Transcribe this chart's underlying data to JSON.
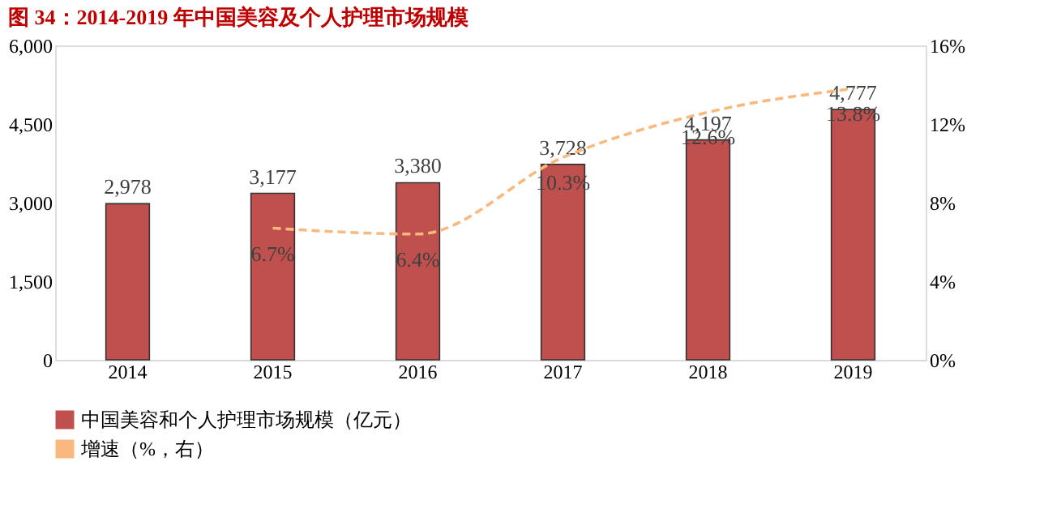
{
  "chart_data": {
    "type": "bar",
    "title": "图 34：2014-2019 年中国美容及个人护理市场规模",
    "categories": [
      "2014",
      "2015",
      "2016",
      "2017",
      "2018",
      "2019"
    ],
    "series": [
      {
        "name": "中国美容和个人护理市场规模（亿元）",
        "color": "#c0504d",
        "values": [
          2978,
          3177,
          3380,
          3728,
          4197,
          4777
        ],
        "value_labels": [
          "2,978",
          "3,177",
          "3,380",
          "3,728",
          "4,197",
          "4,777"
        ]
      },
      {
        "name": "增速（%，右）",
        "type": "line",
        "axis": "y2",
        "color": "#f9b97e",
        "line_style": "dashed",
        "values": [
          null,
          6.7,
          6.4,
          10.3,
          12.6,
          13.8
        ],
        "value_labels": [
          null,
          "6.7%",
          "6.4%",
          "10.3%",
          "12.6%",
          "13.8%"
        ]
      }
    ],
    "ylim": [
      0,
      6000
    ],
    "yticks": [
      {
        "value": 0,
        "label": "0"
      },
      {
        "value": 1500,
        "label": "1,500"
      },
      {
        "value": 3000,
        "label": "3,000"
      },
      {
        "value": 4500,
        "label": "4,500"
      },
      {
        "value": 6000,
        "label": "6,000"
      }
    ],
    "y2lim": [
      0,
      16
    ],
    "y2ticks": [
      {
        "value": 0,
        "label": "0%"
      },
      {
        "value": 4,
        "label": "4%"
      },
      {
        "value": 8,
        "label": "8%"
      },
      {
        "value": 12,
        "label": "12%"
      },
      {
        "value": 16,
        "label": "16%"
      }
    ],
    "legend": "bottom",
    "grid": false,
    "marker": "none"
  }
}
